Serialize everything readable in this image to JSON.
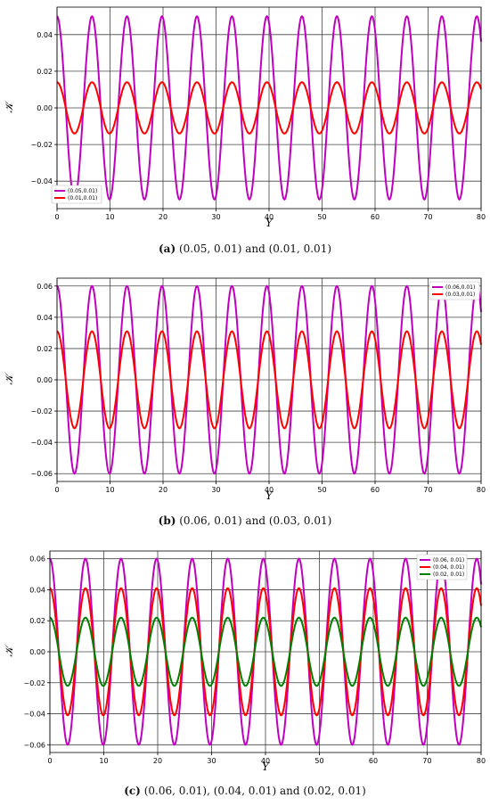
{
  "chart_data": [
    {
      "type": "line",
      "xlabel": "Y",
      "ylabel": "𝒦",
      "xlim": [
        0,
        80
      ],
      "ylim": [
        -0.055,
        0.055
      ],
      "xticks": [
        0,
        10,
        20,
        30,
        40,
        50,
        60,
        70,
        80
      ],
      "yticks": [
        -0.04,
        -0.02,
        0.0,
        0.02,
        0.04
      ],
      "ytick_labels": [
        "−0.04",
        "−0.02",
        "0.00",
        "0.02",
        "0.04"
      ],
      "grid": true,
      "legend_position": "bottom-left",
      "period": 6.6,
      "series": [
        {
          "name": "(0.05,0.01)",
          "amplitude": 0.05,
          "color": "#c000c0"
        },
        {
          "name": "(0.01,0.01)",
          "amplitude": 0.014,
          "color": "#ff0000"
        }
      ],
      "caption_label": "(a)",
      "caption_text": "(0.05, 0.01) and (0.01, 0.01)"
    },
    {
      "type": "line",
      "xlabel": "Y",
      "ylabel": "𝒦",
      "xlim": [
        0,
        80
      ],
      "ylim": [
        -0.065,
        0.065
      ],
      "xticks": [
        0,
        10,
        20,
        30,
        40,
        50,
        60,
        70,
        80
      ],
      "yticks": [
        -0.06,
        -0.04,
        -0.02,
        0.0,
        0.02,
        0.04,
        0.06
      ],
      "ytick_labels": [
        "−0.06",
        "−0.04",
        "−0.02",
        "0.00",
        "0.02",
        "0.04",
        "0.06"
      ],
      "grid": true,
      "legend_position": "top-right",
      "period": 6.6,
      "series": [
        {
          "name": "(0.06,0.01)",
          "amplitude": 0.06,
          "color": "#c000c0"
        },
        {
          "name": "(0.03,0.01)",
          "amplitude": 0.031,
          "color": "#ff0000"
        }
      ],
      "caption_label": "(b)",
      "caption_text": "(0.06, 0.01) and (0.03, 0.01)"
    },
    {
      "type": "line",
      "xlabel": "Y",
      "ylabel": "𝒦",
      "xlim": [
        0,
        80
      ],
      "ylim": [
        -0.065,
        0.065
      ],
      "xticks": [
        0,
        10,
        20,
        30,
        40,
        50,
        60,
        70,
        80
      ],
      "yticks": [
        -0.06,
        -0.04,
        -0.02,
        0.0,
        0.02,
        0.04,
        0.06
      ],
      "ytick_labels": [
        "−0.06",
        "−0.04",
        "−0.02",
        "0.00",
        "0.02",
        "0.04",
        "0.06"
      ],
      "grid": true,
      "legend_position": "top-right",
      "period": 6.6,
      "series": [
        {
          "name": "(0.06, 0.01)",
          "amplitude": 0.06,
          "color": "#c000c0"
        },
        {
          "name": "(0.04, 0.01)",
          "amplitude": 0.041,
          "color": "#ff0000"
        },
        {
          "name": "(0.02, 0.01)",
          "amplitude": 0.022,
          "color": "#008000"
        }
      ],
      "caption_label": "(c)",
      "caption_text": "(0.06, 0.01), (0.04, 0.01) and (0.02, 0.01)"
    }
  ]
}
